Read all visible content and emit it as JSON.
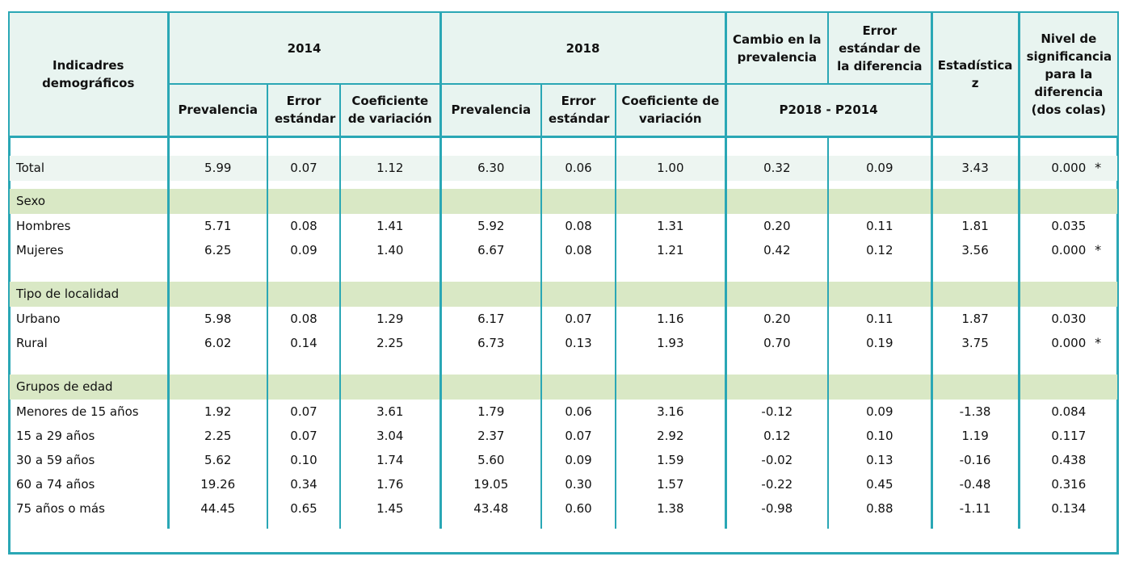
{
  "header": {
    "row_label": "Indicadres demográficos",
    "year_a": "2014",
    "year_b": "2018",
    "prev": "Prevalencia",
    "err": "Error estándar",
    "cv": "Coeficiente de variación",
    "cambio": "Cambio en la prevalencia",
    "err_dif": "Error estándar de la diferencia",
    "diff_label": "P2018 - P2014",
    "z": "Estadística z",
    "sig": "Nivel de significancia para la diferencia (dos colas)"
  },
  "total": {
    "label": "Total",
    "v": [
      "5.99",
      "0.07",
      "1.12",
      "6.30",
      "0.06",
      "1.00",
      "0.32",
      "0.09",
      "3.43",
      "0.000"
    ],
    "star": "*"
  },
  "groups": [
    {
      "title": "Sexo",
      "rows": [
        {
          "label": "Hombres",
          "v": [
            "5.71",
            "0.08",
            "1.41",
            "5.92",
            "0.08",
            "1.31",
            "0.20",
            "0.11",
            "1.81",
            "0.035"
          ],
          "star": ""
        },
        {
          "label": "Mujeres",
          "v": [
            "6.25",
            "0.09",
            "1.40",
            "6.67",
            "0.08",
            "1.21",
            "0.42",
            "0.12",
            "3.56",
            "0.000"
          ],
          "star": "*"
        }
      ]
    },
    {
      "title": "Tipo de localidad",
      "rows": [
        {
          "label": "Urbano",
          "v": [
            "5.98",
            "0.08",
            "1.29",
            "6.17",
            "0.07",
            "1.16",
            "0.20",
            "0.11",
            "1.87",
            "0.030"
          ],
          "star": ""
        },
        {
          "label": "Rural",
          "v": [
            "6.02",
            "0.14",
            "2.25",
            "6.73",
            "0.13",
            "1.93",
            "0.70",
            "0.19",
            "3.75",
            "0.000"
          ],
          "star": "*"
        }
      ]
    },
    {
      "title": "Grupos de edad",
      "rows": [
        {
          "label": "Menores de 15 años",
          "v": [
            "1.92",
            "0.07",
            "3.61",
            "1.79",
            "0.06",
            "3.16",
            "-0.12",
            "0.09",
            "-1.38",
            "0.084"
          ],
          "star": ""
        },
        {
          "label": "15 a 29 años",
          "v": [
            "2.25",
            "0.07",
            "3.04",
            "2.37",
            "0.07",
            "2.92",
            "0.12",
            "0.10",
            "1.19",
            "0.117"
          ],
          "star": ""
        },
        {
          "label": "30 a 59 años",
          "v": [
            "5.62",
            "0.10",
            "1.74",
            "5.60",
            "0.09",
            "1.59",
            "-0.02",
            "0.13",
            "-0.16",
            "0.438"
          ],
          "star": ""
        },
        {
          "label": "60 a 74 años",
          "v": [
            "19.26",
            "0.34",
            "1.76",
            "19.05",
            "0.30",
            "1.57",
            "-0.22",
            "0.45",
            "-0.48",
            "0.316"
          ],
          "star": ""
        },
        {
          "label": "75 años o más",
          "v": [
            "44.45",
            "0.65",
            "1.45",
            "43.48",
            "0.60",
            "1.38",
            "-0.98",
            "0.88",
            "-1.11",
            "0.134"
          ],
          "star": ""
        }
      ]
    }
  ]
}
